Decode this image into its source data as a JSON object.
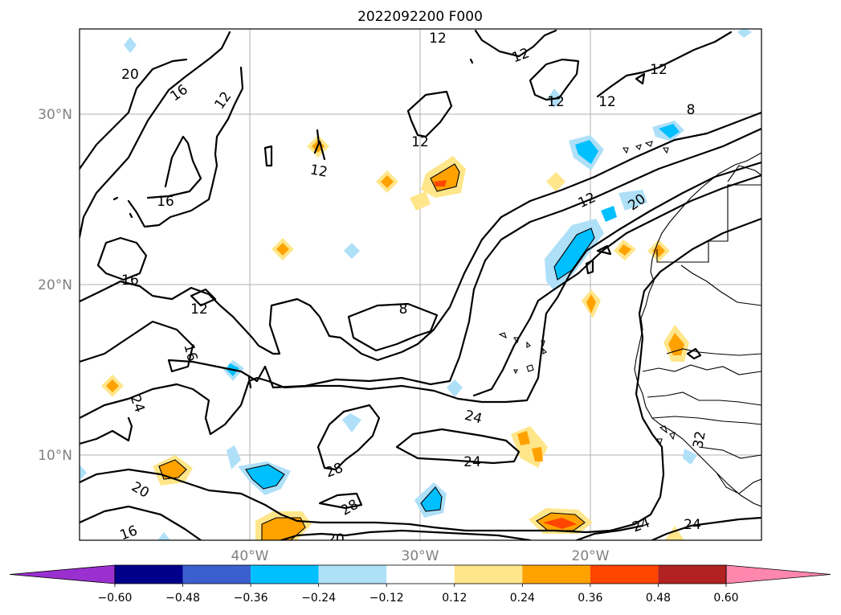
{
  "title": "2022092200 F000",
  "axes": {
    "lat_labels": [
      "30°N",
      "20°N",
      "10°N"
    ],
    "lon_labels": [
      "40°W",
      "30°W",
      "20°W"
    ]
  },
  "colorbar": {
    "ticks": [
      "−0.60",
      "−0.48",
      "−0.36",
      "−0.24",
      "−0.12",
      "0.12",
      "0.24",
      "0.36",
      "0.48",
      "0.60"
    ],
    "colors": [
      "#9b30d0",
      "#00008b",
      "#3b5fcf",
      "#00bfff",
      "#aee0f8",
      "#ffffff",
      "#ffe68a",
      "#ffa200",
      "#ff4500",
      "#b22222",
      "#ff86ad"
    ]
  },
  "contour_labels": [
    "12",
    "12",
    "12",
    "12",
    "12",
    "12",
    "12",
    "12",
    "12",
    "12",
    "8",
    "8",
    "16",
    "16",
    "16",
    "16",
    "16",
    "20",
    "20",
    "20",
    "20",
    "24",
    "24",
    "24",
    "24",
    "24",
    "28",
    "28",
    "28",
    "32"
  ],
  "colors": {
    "grid": "#b0b0b0",
    "contour": "#000000",
    "axis_label": "#808080"
  }
}
